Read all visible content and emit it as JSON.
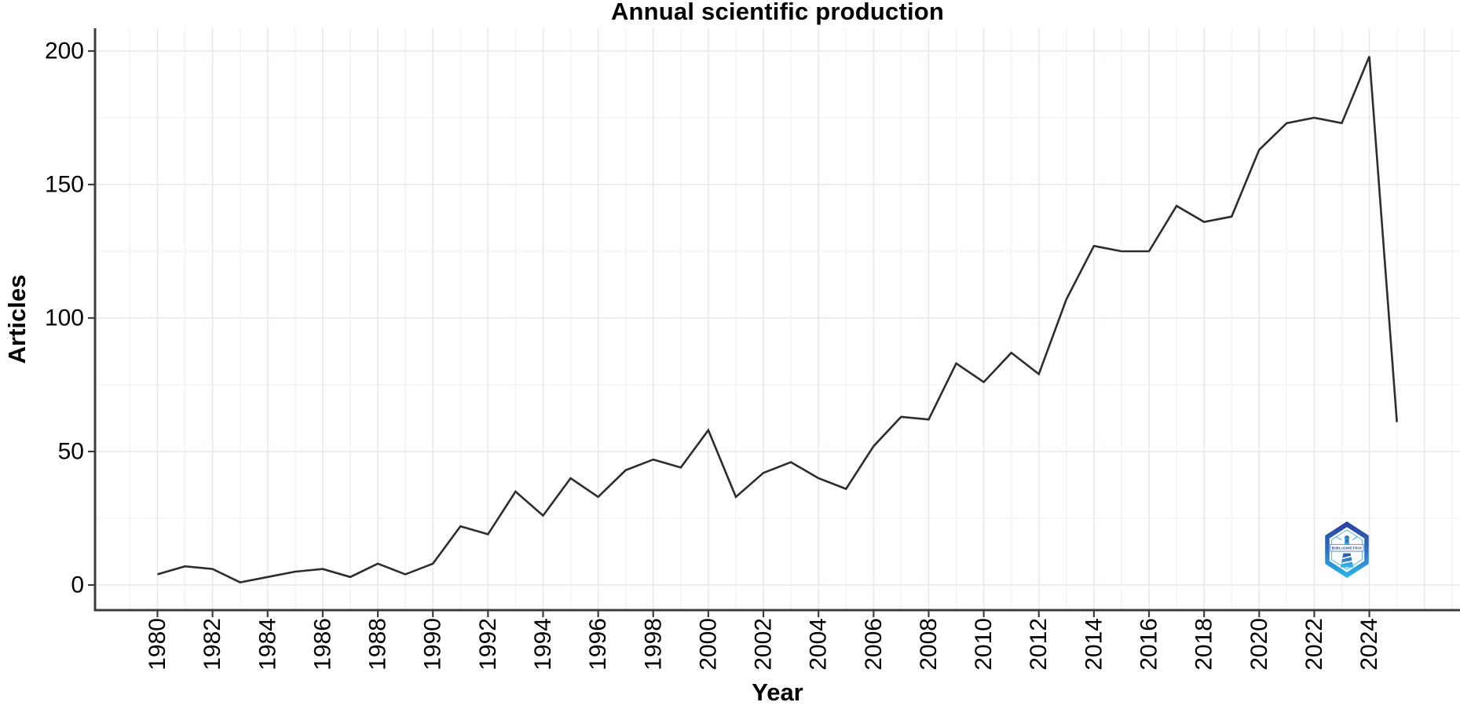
{
  "title": "Annual scientific production",
  "chart_data": {
    "type": "line",
    "title": "Annual scientific production",
    "xlabel": "Year",
    "ylabel": "Articles",
    "x": [
      1980,
      1981,
      1982,
      1983,
      1984,
      1985,
      1986,
      1987,
      1988,
      1989,
      1990,
      1991,
      1992,
      1993,
      1994,
      1995,
      1996,
      1997,
      1998,
      1999,
      2000,
      2001,
      2002,
      2003,
      2004,
      2005,
      2006,
      2007,
      2008,
      2009,
      2010,
      2011,
      2012,
      2013,
      2014,
      2015,
      2016,
      2017,
      2018,
      2019,
      2020,
      2021,
      2022,
      2023,
      2024,
      2025
    ],
    "values": [
      4,
      7,
      6,
      1,
      3,
      5,
      6,
      3,
      8,
      4,
      8,
      22,
      19,
      35,
      26,
      40,
      33,
      43,
      47,
      44,
      58,
      33,
      42,
      46,
      40,
      36,
      52,
      63,
      62,
      83,
      76,
      87,
      79,
      107,
      127,
      125,
      125,
      142,
      136,
      138,
      163,
      173,
      175,
      173,
      198,
      61
    ],
    "x_tick_labels": [
      "1980",
      "1982",
      "1984",
      "1986",
      "1988",
      "1990",
      "1992",
      "1994",
      "1996",
      "1998",
      "2000",
      "2002",
      "2004",
      "2006",
      "2008",
      "2010",
      "2012",
      "2014",
      "2016",
      "2018",
      "2020",
      "2022",
      "2024"
    ],
    "y_tick_labels": [
      "0",
      "50",
      "100",
      "150",
      "200"
    ],
    "y_ticks": [
      0,
      50,
      100,
      150,
      200
    ],
    "y_minor_ticks": [
      25,
      75,
      125,
      175
    ],
    "xlim": [
      1980,
      2025
    ],
    "ylim": [
      0,
      200
    ],
    "grid": "on",
    "legend": "none"
  },
  "colors": {
    "line": "#2d2d2d",
    "axis": "#3d3d3d",
    "grid_major": "#ece6e6",
    "grid_minor": "#f6f2f2",
    "text": "#000000",
    "logo_top": "#2b3f9e",
    "logo_bottom": "#29b6e8"
  },
  "logo": {
    "text": "BIBLIOMETRIX"
  }
}
